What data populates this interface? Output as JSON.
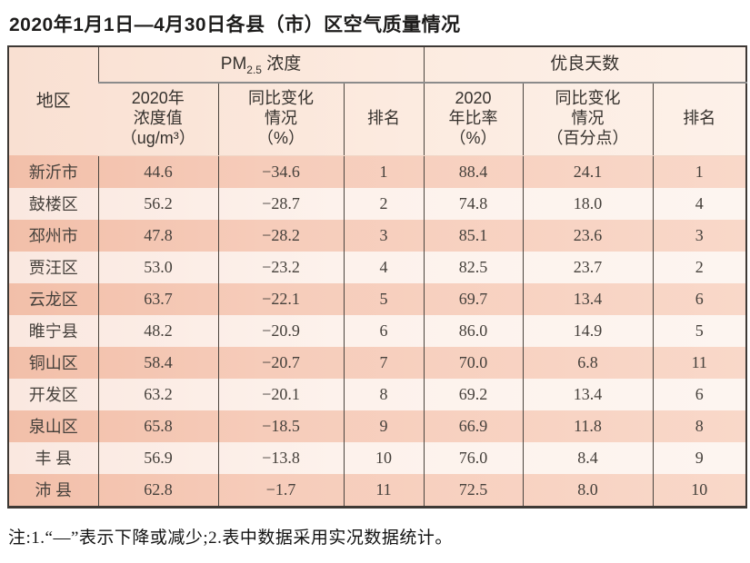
{
  "title": "2020年1月1日—4月30日各县（市）区空气质量情况",
  "footnote": "注:1.“—”表示下降或减少;2.表中数据采用实况数据统计。",
  "colors": {
    "row_odd": "#f5c8b5",
    "row_even": "#fdf2ec",
    "header_bg": "#fbe7da",
    "border": "#3e3935",
    "group_divider": "#8b8b8b"
  },
  "table": {
    "header": {
      "region": "地区",
      "pm_group": {
        "base": "PM",
        "sub": "2.5",
        "rest": " 浓度"
      },
      "good_group": "优良天数",
      "pm_value": "2020年\n浓度值\n（ug/m³）",
      "pm_change": "同比变化\n情况\n（%）",
      "pm_rank": "排名",
      "good_ratio": "2020\n年比率\n（%）",
      "good_change": "同比变化\n情况\n（百分点）",
      "good_rank": "排名"
    },
    "rows": [
      [
        "新沂市",
        "44.6",
        "−34.6",
        "1",
        "88.4",
        "24.1",
        "1"
      ],
      [
        "鼓楼区",
        "56.2",
        "−28.7",
        "2",
        "74.8",
        "18.0",
        "4"
      ],
      [
        "邳州市",
        "47.8",
        "−28.2",
        "3",
        "85.1",
        "23.6",
        "3"
      ],
      [
        "贾汪区",
        "53.0",
        "−23.2",
        "4",
        "82.5",
        "23.7",
        "2"
      ],
      [
        "云龙区",
        "63.7",
        "−22.1",
        "5",
        "69.7",
        "13.4",
        "6"
      ],
      [
        "睢宁县",
        "48.2",
        "−20.9",
        "6",
        "86.0",
        "14.9",
        "5"
      ],
      [
        "铜山区",
        "58.4",
        "−20.7",
        "7",
        "70.0",
        "6.8",
        "11"
      ],
      [
        "开发区",
        "63.2",
        "−20.1",
        "8",
        "69.2",
        "13.4",
        "6"
      ],
      [
        "泉山区",
        "65.8",
        "−18.5",
        "9",
        "66.9",
        "11.8",
        "8"
      ],
      [
        "丰 县",
        "56.9",
        "−13.8",
        "10",
        "76.0",
        "8.4",
        "9"
      ],
      [
        "沛 县",
        "62.8",
        "−1.7",
        "11",
        "72.5",
        "8.0",
        "10"
      ]
    ]
  }
}
